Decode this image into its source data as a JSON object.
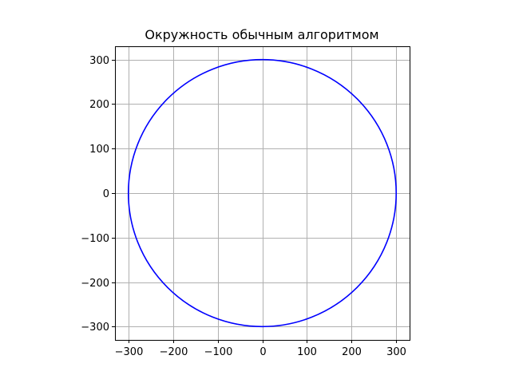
{
  "chart_data": {
    "type": "line",
    "title": "Окружность обычным алгоритмом",
    "xlabel": "",
    "ylabel": "",
    "xlim": [
      -330,
      330
    ],
    "ylim": [
      -330,
      330
    ],
    "grid": true,
    "aspect": "equal",
    "x_ticks": [
      -300,
      -200,
      -100,
      0,
      100,
      200,
      300
    ],
    "y_ticks": [
      -300,
      -200,
      -100,
      0,
      100,
      200,
      300
    ],
    "x_tick_labels": [
      "−300",
      "−200",
      "−100",
      "0",
      "100",
      "200",
      "300"
    ],
    "y_tick_labels": [
      "−300",
      "−200",
      "−100",
      "0",
      "100",
      "200",
      "300"
    ],
    "series": [
      {
        "shape": "circle",
        "center": [
          0,
          0
        ],
        "radius": 300,
        "color": "#0000ff"
      }
    ]
  }
}
